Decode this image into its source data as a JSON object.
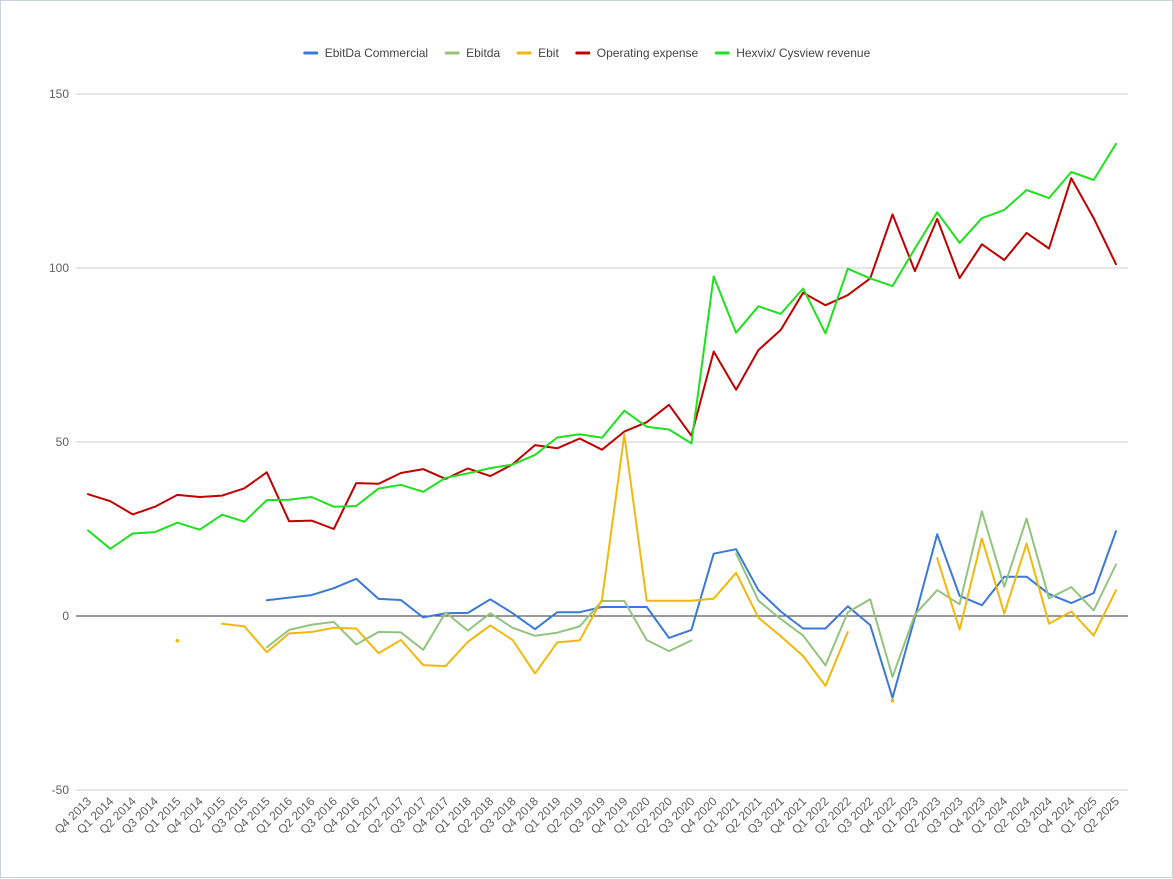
{
  "chart_data": {
    "type": "line",
    "title": "",
    "xlabel": "",
    "ylabel": "",
    "ylim": [
      -50,
      150
    ],
    "yticks": [
      150,
      100,
      50,
      0,
      -50
    ],
    "grid": true,
    "legend_position": "top",
    "categories": [
      "Q4 2013",
      "Q1 2014",
      "Q2 2014",
      "Q3 2014",
      "Q1 2015",
      "Q4 2014",
      "Q2 1015",
      "Q3 2015",
      "Q4 2015",
      "Q1 2016",
      "Q2 2016",
      "Q3 2016",
      "Q4 2016",
      "Q1 2017",
      "Q2 2017",
      "Q3 2017",
      "Q4 2017",
      "Q1 2018",
      "Q2 2018",
      "Q3 2018",
      "Q4 2018",
      "Q1 2019",
      "Q2 2019",
      "Q3 2019",
      "Q4 2019",
      "Q1 2020",
      "Q2 2020",
      "Q3 2020",
      "Q4 2020",
      "Q1 2021",
      "Q2 2021",
      "Q3 2021",
      "Q4 2021",
      "Q1 2022",
      "Q2 2022",
      "Q3 2022",
      "Q4 2022",
      "Q1 2023",
      "Q2 2023",
      "Q3 2023",
      "Q4 2023",
      "Q1 2024",
      "Q2 2024",
      "Q3 2024",
      "Q4 2024",
      "Q1 2025",
      "Q2 2025"
    ],
    "series": [
      {
        "name": "EbitDa Commercial",
        "color": "#3c78d8",
        "values": [
          null,
          null,
          null,
          null,
          null,
          null,
          null,
          null,
          4.5,
          5.3,
          6,
          8,
          10.7,
          4.9,
          4.6,
          -0.4,
          0.8,
          0.9,
          4.8,
          0.8,
          -3.8,
          1.1,
          1.1,
          2.6,
          2.6,
          2.6,
          -6.3,
          -4,
          17.9,
          19.2,
          7.4,
          1.3,
          -3.6,
          -3.6,
          2.8,
          -2.6,
          -23.5,
          -0.4,
          23.5,
          5.8,
          3.1,
          11.3,
          11.3,
          6.3,
          3.7,
          6.6,
          24.4
        ]
      },
      {
        "name": "Ebitda",
        "color": "#93c47d",
        "values": [
          null,
          null,
          null,
          null,
          null,
          null,
          null,
          null,
          -9,
          -4,
          -2.5,
          -1.7,
          -8.2,
          -4.6,
          -4.7,
          -9.7,
          1,
          -4.2,
          0.8,
          -3.4,
          -5.7,
          -4.8,
          -3,
          4.3,
          4.3,
          -6.9,
          -10.1,
          -7,
          null,
          18,
          4.4,
          -0.9,
          -5.6,
          -14.2,
          1.1,
          4.8,
          -17.5,
          0.4,
          7.4,
          3.4,
          30.1,
          8.4,
          28,
          5.1,
          8.3,
          1.6,
          14.8
        ]
      },
      {
        "name": "Ebit",
        "color": "#f1b80e",
        "values": [
          null,
          null,
          null,
          null,
          -7.1,
          null,
          -2.2,
          -3,
          -10.4,
          -5,
          -4.6,
          -3.4,
          -3.6,
          -10.7,
          -6.9,
          -14.1,
          -14.4,
          -7.4,
          -2.7,
          -6.9,
          -16.5,
          -7.6,
          -7,
          4.7,
          52.1,
          4.4,
          4.4,
          4.4,
          5,
          12.4,
          -0.5,
          -5.8,
          -11.5,
          -20.1,
          -4.6,
          null,
          -24.3,
          null,
          16.6,
          -3.9,
          22.3,
          0.7,
          20.8,
          -2.2,
          1.3,
          -5.6,
          7.4
        ]
      },
      {
        "name": "Operating expense",
        "color": "#c00000",
        "values": [
          35,
          33,
          29.2,
          31.4,
          34.8,
          34.2,
          34.6,
          36.7,
          41.3,
          27.2,
          27.4,
          25,
          38.2,
          38,
          41.1,
          42.2,
          39.4,
          42.4,
          40.2,
          43.6,
          49.1,
          48.2,
          51,
          47.8,
          53,
          55.7,
          60.7,
          51.8,
          76,
          65,
          76.4,
          82.2,
          92.9,
          89.3,
          92.2,
          97,
          115.4,
          99.1,
          114.1,
          97.1,
          106.8,
          102.3,
          110.1,
          105.6,
          125.8,
          114.3,
          101.1
        ]
      },
      {
        "name": "Hexvix/ Cysview revenue",
        "color": "#1fe01f",
        "values": [
          24.6,
          19.3,
          23.7,
          24.1,
          26.8,
          24.8,
          29.1,
          27.1,
          33.3,
          33.4,
          34.2,
          31.4,
          31.6,
          36.6,
          37.7,
          35.7,
          39.7,
          41,
          42.5,
          43.5,
          46.3,
          51.3,
          52.2,
          51.2,
          59,
          54.4,
          53.6,
          49.6,
          97.6,
          81.4,
          89,
          86.8,
          94.1,
          81.2,
          99.8,
          97,
          94.8,
          105.6,
          116,
          107.2,
          114.3,
          116.7,
          122.4,
          120.1,
          127.6,
          125.3,
          135.7
        ]
      }
    ]
  }
}
